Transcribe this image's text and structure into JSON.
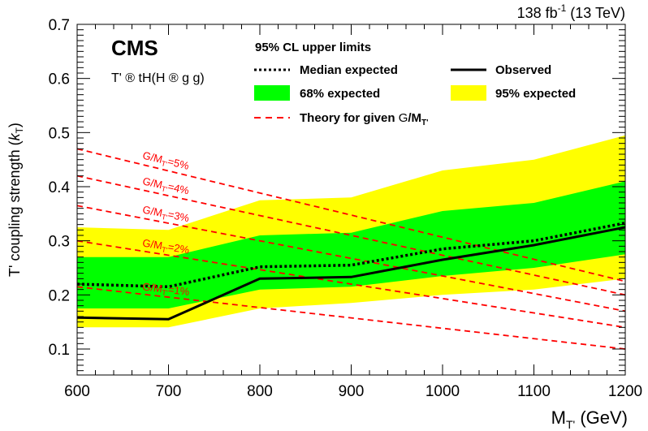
{
  "lumi_label": "138 fb",
  "lumi_sup": "-1",
  "lumi_energy": " (13 TeV)",
  "experiment": "CMS",
  "process": {
    "prefix": "T' ",
    "arrow": "®",
    "mid": " tH(H ",
    "arrow2": "®",
    "suffix": " g g)"
  },
  "legend": {
    "header": "95% CL upper limits",
    "median": "Median expected",
    "observed": "Observed",
    "band68": "68% expected",
    "band95": "95% expected",
    "theory_prefix": "Theory for given ",
    "theory_G": "G",
    "theory_mid": "/M",
    "theory_sub": "T'"
  },
  "ylabel_main": "T' coupling strength (",
  "ylabel_k": "k",
  "ylabel_sub": "T",
  "ylabel_end": ")",
  "xlabel_main": "M",
  "xlabel_sub": "T'",
  "xlabel_unit": " (GeV)",
  "colors": {
    "band95": "#ffff00",
    "band68": "#00ff00",
    "observed": "#000000",
    "median": "#000000",
    "theory": "#ff0000"
  },
  "chart_data": {
    "type": "line",
    "xlim": [
      600,
      1200
    ],
    "ylim": [
      0.05,
      0.7
    ],
    "x_ticks": [
      600,
      700,
      800,
      900,
      1000,
      1100,
      1200
    ],
    "x_tick_labels": [
      "600",
      "700",
      "800",
      "900",
      "1000",
      "1100",
      "1200"
    ],
    "y_ticks": [
      0.1,
      0.2,
      0.3,
      0.4,
      0.5,
      0.6,
      0.7
    ],
    "y_tick_labels": [
      "0.1",
      "0.2",
      "0.3",
      "0.4",
      "0.5",
      "0.6",
      "0.7"
    ],
    "x": [
      600,
      700,
      800,
      900,
      1000,
      1100,
      1200
    ],
    "observed": [
      0.158,
      0.155,
      0.23,
      0.233,
      0.265,
      0.292,
      0.325
    ],
    "median_expected": [
      0.22,
      0.215,
      0.252,
      0.255,
      0.285,
      0.3,
      0.333
    ],
    "band68": {
      "low": [
        0.175,
        0.175,
        0.21,
        0.215,
        0.235,
        0.25,
        0.275
      ],
      "high": [
        0.27,
        0.27,
        0.31,
        0.315,
        0.355,
        0.37,
        0.41
      ]
    },
    "band95": {
      "low": [
        0.14,
        0.14,
        0.175,
        0.185,
        0.2,
        0.21,
        0.23
      ],
      "high": [
        0.325,
        0.32,
        0.375,
        0.38,
        0.43,
        0.45,
        0.495
      ]
    },
    "theory_curves": [
      {
        "label": "G/M",
        "sub": "T'",
        "value": "=5%",
        "x": [
          600,
          1200
        ],
        "y": [
          0.47,
          0.225
        ]
      },
      {
        "label": "G/M",
        "sub": "T'",
        "value": "=4%",
        "x": [
          600,
          1200
        ],
        "y": [
          0.42,
          0.2
        ]
      },
      {
        "label": "G/M",
        "sub": "T'",
        "value": "=3%",
        "x": [
          600,
          1200
        ],
        "y": [
          0.365,
          0.17
        ]
      },
      {
        "label": "G/M",
        "sub": "T'",
        "value": "=2%",
        "x": [
          600,
          1200
        ],
        "y": [
          0.3,
          0.14
        ]
      },
      {
        "label": "G/M",
        "sub": "T'",
        "value": "=1%",
        "x": [
          600,
          1200
        ],
        "y": [
          0.215,
          0.1
        ]
      }
    ]
  }
}
